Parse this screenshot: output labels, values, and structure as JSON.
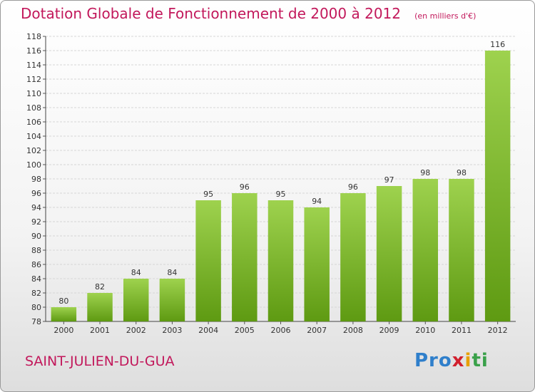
{
  "header": {
    "title": "Dotation Globale de Fonctionnement de 2000 à 2012",
    "subtitle": "(en milliers d'€)"
  },
  "footer": {
    "commune": "SAINT-JULIEN-DU-GUA",
    "brand": "Proxiti",
    "brand_colors": [
      "#2f7fcb",
      "#e8a000",
      "#d1202e",
      "#3aa14a"
    ]
  },
  "chart_data": {
    "type": "bar",
    "title": "Dotation Globale de Fonctionnement de 2000 à 2012",
    "subtitle": "(en milliers d'€)",
    "categories": [
      "2000",
      "2001",
      "2002",
      "2003",
      "2004",
      "2005",
      "2006",
      "2007",
      "2008",
      "2009",
      "2010",
      "2011",
      "2012"
    ],
    "values": [
      80,
      82,
      84,
      84,
      95,
      96,
      95,
      94,
      96,
      97,
      98,
      98,
      116
    ],
    "ylim": [
      78,
      118
    ],
    "ytick_step": 2,
    "grid": true,
    "bar_color_top": "#9ed24e",
    "bar_color_bottom": "#5e9a12",
    "data_labels": true
  }
}
